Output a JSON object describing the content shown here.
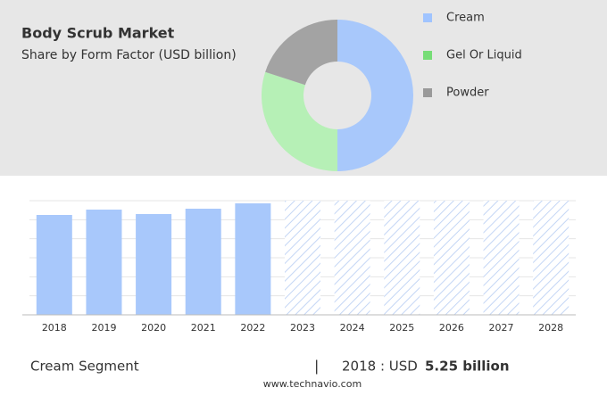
{
  "chart_data": [
    {
      "type": "pie",
      "title": "Body Scrub Market",
      "subtitle": "Share by Form Factor (USD billion)",
      "categories": [
        "Cream",
        "Gel Or Liquid",
        "Powder"
      ],
      "values": [
        50,
        30,
        20
      ],
      "colors": [
        "#a8c8fb",
        "#b6f0b6",
        "#a3a3a3"
      ],
      "legend_colors": [
        "#a0c4ff",
        "#77dd77",
        "#9a9a9a"
      ]
    },
    {
      "type": "bar",
      "categories": [
        "2018",
        "2019",
        "2020",
        "2021",
        "2022",
        "2023",
        "2024",
        "2025",
        "2026",
        "2027",
        "2028"
      ],
      "values": [
        11.2,
        11.8,
        11.3,
        11.9,
        12.5,
        null,
        null,
        null,
        null,
        null,
        null
      ],
      "color": "#a8c8fb",
      "ylim": [
        0,
        12.8
      ]
    }
  ],
  "footer": {
    "segment": "Cream Segment",
    "separator": "|",
    "year_label": "2018 : USD",
    "value_label": "5.25 billion",
    "source": "www.technavio.com"
  }
}
